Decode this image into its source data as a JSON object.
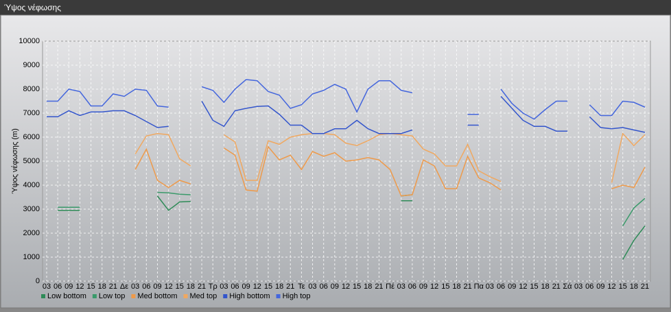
{
  "window_title": "Ύψος νέφωσης",
  "chart_data": {
    "type": "line",
    "ylabel": "Ύψος νέφωσης (m)",
    "categories": [
      "03",
      "06",
      "09",
      "12",
      "15",
      "18",
      "21",
      "Δε",
      "03",
      "06",
      "09",
      "12",
      "15",
      "18",
      "21",
      "Τρ",
      "03",
      "06",
      "09",
      "12",
      "15",
      "18",
      "21",
      "Τε",
      "03",
      "06",
      "09",
      "12",
      "15",
      "18",
      "21",
      "Πέ",
      "03",
      "06",
      "09",
      "12",
      "15",
      "18",
      "21",
      "Πα",
      "03",
      "06",
      "09",
      "12",
      "15",
      "18",
      "21",
      "Σά",
      "03",
      "06",
      "09",
      "12",
      "15",
      "18",
      "21"
    ],
    "ylim": [
      0,
      10000
    ],
    "yticks": [
      0,
      1000,
      2000,
      3000,
      4000,
      5000,
      6000,
      7000,
      8000,
      9000,
      10000
    ],
    "grid": true,
    "series": [
      {
        "name": "Low bottom",
        "color": "#2e8b57",
        "values": [
          null,
          2950,
          2950,
          2950,
          null,
          null,
          null,
          null,
          null,
          null,
          3550,
          2950,
          3300,
          3320,
          null,
          null,
          null,
          null,
          null,
          null,
          null,
          null,
          null,
          null,
          null,
          null,
          null,
          null,
          null,
          null,
          null,
          null,
          3350,
          3350,
          null,
          null,
          null,
          null,
          null,
          null,
          null,
          null,
          null,
          null,
          null,
          null,
          null,
          null,
          null,
          null,
          null,
          null,
          900,
          1700,
          2300
        ]
      },
      {
        "name": "Low top",
        "color": "#3a9a6a",
        "values": [
          null,
          3080,
          3080,
          3080,
          null,
          null,
          null,
          null,
          null,
          null,
          3700,
          3680,
          3620,
          3600,
          null,
          null,
          null,
          null,
          null,
          null,
          null,
          null,
          null,
          null,
          null,
          null,
          null,
          null,
          null,
          null,
          null,
          null,
          3550,
          3600,
          null,
          null,
          null,
          null,
          null,
          null,
          null,
          null,
          null,
          null,
          null,
          null,
          null,
          null,
          null,
          null,
          null,
          null,
          2300,
          3050,
          3450
        ]
      },
      {
        "name": "Med bottom",
        "color": "#ee9a4a",
        "values": [
          null,
          null,
          null,
          null,
          null,
          null,
          null,
          null,
          4650,
          5500,
          4200,
          3900,
          4200,
          4050,
          null,
          null,
          5550,
          5250,
          3800,
          3750,
          5600,
          5050,
          5250,
          4650,
          5400,
          5200,
          5350,
          5000,
          5050,
          5150,
          5050,
          4650,
          3550,
          3600,
          5050,
          4800,
          3850,
          3850,
          5200,
          4300,
          4100,
          3800,
          null,
          null,
          null,
          null,
          null,
          null,
          null,
          null,
          null,
          3850,
          4000,
          3900,
          4750
        ]
      },
      {
        "name": "Med top",
        "color": "#f0a860",
        "values": [
          null,
          null,
          null,
          null,
          null,
          null,
          null,
          null,
          5300,
          6050,
          6150,
          6100,
          5100,
          4800,
          null,
          null,
          6100,
          5800,
          4200,
          4200,
          5850,
          5700,
          6000,
          6100,
          6150,
          6150,
          6100,
          5750,
          5650,
          5850,
          6100,
          6150,
          6100,
          6050,
          5500,
          5300,
          4800,
          4800,
          5700,
          4600,
          4350,
          4150,
          null,
          null,
          null,
          null,
          null,
          null,
          null,
          null,
          null,
          4100,
          6150,
          5650,
          6100
        ]
      },
      {
        "name": "High bottom",
        "color": "#3355cc",
        "values": [
          6850,
          6850,
          7100,
          6900,
          7050,
          7050,
          7100,
          7100,
          6900,
          6650,
          6400,
          6450,
          null,
          null,
          7500,
          6700,
          6450,
          7100,
          7200,
          7280,
          7300,
          6950,
          6500,
          6500,
          6150,
          6150,
          6350,
          6350,
          6700,
          6350,
          6150,
          6150,
          6150,
          6300,
          null,
          null,
          null,
          null,
          6500,
          6500,
          null,
          7700,
          7200,
          6700,
          6450,
          6450,
          6250,
          6250,
          null,
          6850,
          6400,
          6350,
          6400,
          6300,
          6200
        ]
      },
      {
        "name": "High top",
        "color": "#4466dd",
        "values": [
          7500,
          7500,
          8000,
          7900,
          7300,
          7300,
          7800,
          7700,
          8000,
          7950,
          7300,
          7250,
          null,
          null,
          8100,
          7950,
          7450,
          8000,
          8400,
          8350,
          7900,
          7750,
          7200,
          7350,
          7800,
          7950,
          8200,
          8000,
          7050,
          8000,
          8350,
          8350,
          7950,
          7850,
          null,
          null,
          null,
          null,
          6950,
          6950,
          null,
          8000,
          7400,
          7000,
          6750,
          7150,
          7500,
          7500,
          null,
          7350,
          6900,
          6900,
          7500,
          7450,
          7250
        ]
      }
    ]
  }
}
